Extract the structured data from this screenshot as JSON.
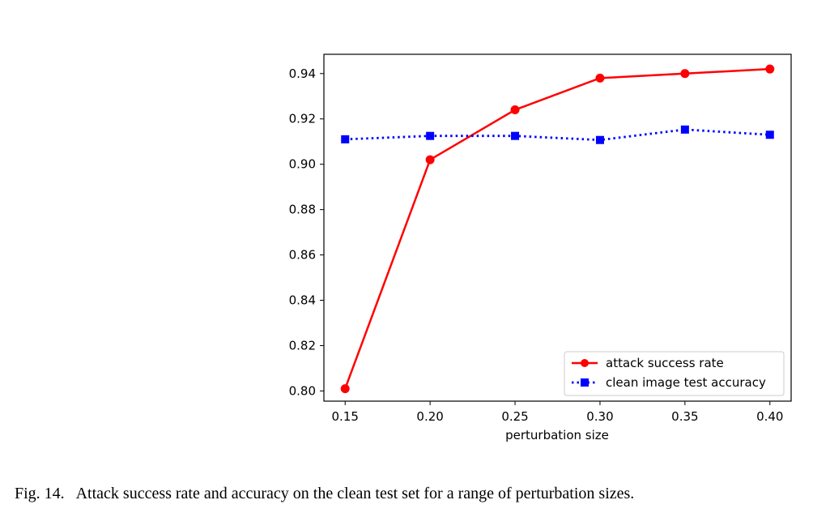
{
  "chart_data": {
    "type": "line",
    "x": [
      0.15,
      0.2,
      0.25,
      0.3,
      0.35,
      0.4
    ],
    "x_ticks": [
      "0.15",
      "0.20",
      "0.25",
      "0.30",
      "0.35",
      "0.40"
    ],
    "y_ticks": [
      "0.80",
      "0.82",
      "0.84",
      "0.86",
      "0.88",
      "0.90",
      "0.92",
      "0.94"
    ],
    "xlim": [
      0.1375,
      0.4125
    ],
    "ylim": [
      0.7955,
      0.9485
    ],
    "xlabel": "perturbation size",
    "ylabel": "",
    "grid": false,
    "legend_position": "bottom-right",
    "series": [
      {
        "name": "attack success rate",
        "values": [
          0.801,
          0.902,
          0.924,
          0.938,
          0.94,
          0.942
        ],
        "color": "#ff0000",
        "line_style": "solid",
        "marker": "circle"
      },
      {
        "name": "clean image test accuracy",
        "values": [
          0.911,
          0.9125,
          0.9125,
          0.9107,
          0.9153,
          0.913
        ],
        "color": "#0000ff",
        "line_style": "dotted",
        "marker": "square"
      }
    ]
  },
  "caption": {
    "label": "Fig. 14.",
    "text": "Attack success rate and accuracy on the clean test set for a range of perturbation sizes."
  }
}
